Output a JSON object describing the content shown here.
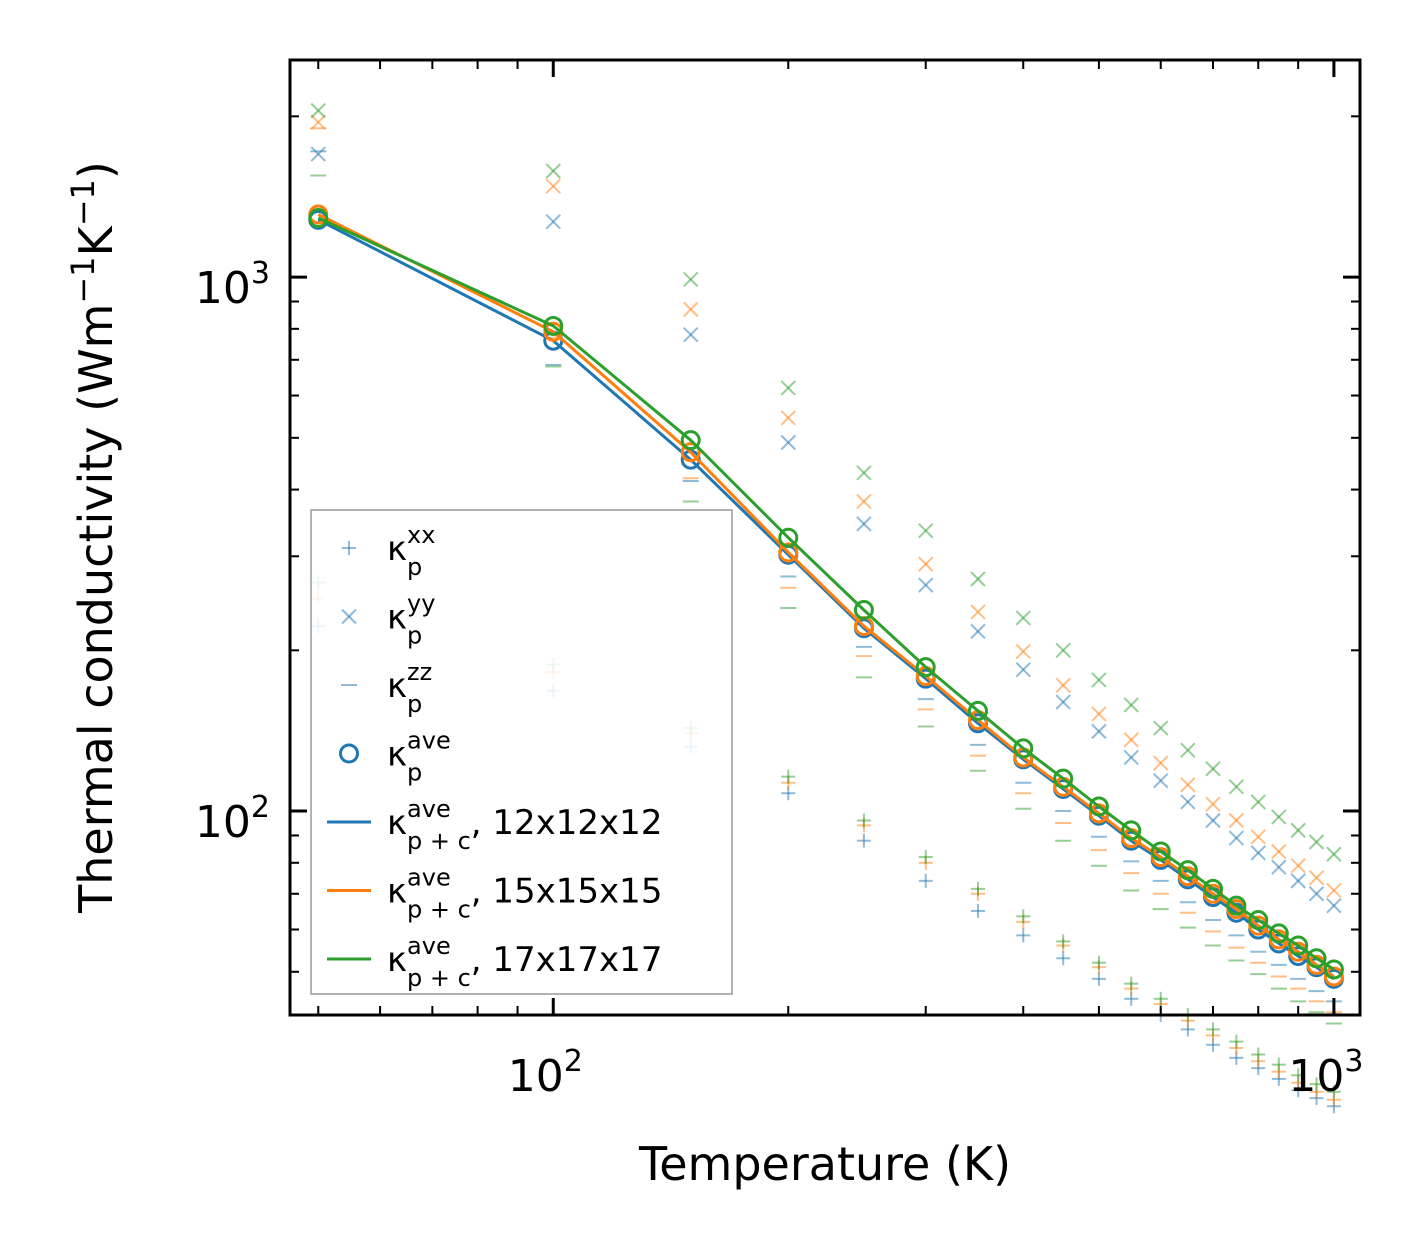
{
  "chart_data": {
    "type": "scatter",
    "xscale": "log",
    "yscale": "log",
    "xlim": [
      46,
      1080
    ],
    "ylim": [
      41.5,
      2550
    ],
    "xlabel": "Temperature (K)",
    "ylabel": {
      "main": "Thermal conductivity (Wm",
      "exp1": "−1",
      "mid": "K",
      "exp2": "−1",
      "close": ")"
    },
    "x_major_ticks": [
      {
        "value": 100,
        "base": "10",
        "exp": "2"
      },
      {
        "value": 1000,
        "base": "10",
        "exp": "3"
      }
    ],
    "y_major_ticks": [
      {
        "value": 100,
        "base": "10",
        "exp": "2"
      },
      {
        "value": 1000,
        "base": "10",
        "exp": "3"
      }
    ],
    "temperatures": [
      50,
      100,
      150,
      200,
      250,
      300,
      350,
      400,
      450,
      500,
      550,
      600,
      650,
      700,
      750,
      800,
      850,
      900,
      950,
      1000
    ],
    "series": [
      {
        "name": "12x12x12",
        "color": "#1f77b4",
        "ave": [
          1280,
          760,
          455,
          302,
          220,
          177,
          146,
          125,
          110,
          98,
          88,
          81,
          74.5,
          69,
          64.5,
          60,
          56.5,
          53.5,
          51,
          48.5
        ],
        "xx": [
          222,
          168,
          132,
          108,
          88,
          74,
          65,
          58.5,
          53,
          48.5,
          44.5,
          41.5,
          39,
          36.5,
          34.5,
          33,
          31.5,
          30,
          29,
          28
        ],
        "yy": [
          1700,
          1270,
          780,
          490,
          345,
          265,
          217,
          184,
          160,
          141,
          126,
          114,
          104,
          96,
          89,
          83.5,
          78.5,
          74,
          70,
          66.5
        ],
        "zz": [
          1720,
          685,
          415,
          275,
          203,
          162,
          133,
          113,
          100,
          89.5,
          80.5,
          74,
          67.5,
          62.5,
          58.5,
          54.5,
          51.5,
          48.5,
          46,
          44
        ]
      },
      {
        "name": "15x15x15",
        "color": "#ff7f0e",
        "ave": [
          1310,
          790,
          470,
          305,
          222,
          179,
          148,
          126,
          111,
          99,
          89,
          82,
          75.5,
          70,
          65.5,
          61,
          57.5,
          54.5,
          51.5,
          49
        ],
        "xx": [
          250,
          182,
          140,
          113,
          94,
          80,
          70,
          62,
          56,
          51,
          46.5,
          43.5,
          40.5,
          38,
          36,
          34,
          32.5,
          31,
          29.8,
          28.8
        ],
        "yy": [
          1950,
          1480,
          870,
          545,
          380,
          290,
          236,
          199,
          172,
          152,
          136,
          123,
          112,
          103,
          96,
          89.5,
          84,
          79,
          75,
          71
        ],
        "zz": [
          1900,
          770,
          420,
          262,
          195,
          155,
          127,
          108,
          95,
          84.5,
          76.5,
          70,
          64.5,
          59.5,
          55.5,
          52,
          49,
          46.5,
          44,
          42
        ]
      },
      {
        "name": "17x17x17",
        "color": "#2ca02c",
        "ave": [
          1290,
          810,
          495,
          325,
          238,
          186,
          154,
          131,
          115,
          102,
          92,
          84,
          77.5,
          71.5,
          66.5,
          62.5,
          59,
          56,
          53,
          50.5
        ],
        "xx": [
          268,
          188,
          143,
          116,
          96,
          82,
          71.5,
          63.5,
          57,
          52,
          47.5,
          44.5,
          41.5,
          39,
          37,
          35,
          33.5,
          32,
          30.8,
          29.8
        ],
        "yy": [
          2050,
          1580,
          990,
          620,
          430,
          335,
          272,
          230,
          200,
          176,
          158,
          143,
          130,
          120,
          111,
          104,
          97.5,
          92,
          87.5,
          83
        ],
        "zz": [
          1550,
          680,
          380,
          240,
          178,
          144,
          119,
          101,
          88,
          79,
          71,
          65.5,
          60.5,
          56,
          52.5,
          49.5,
          46.5,
          44,
          42,
          40
        ]
      }
    ],
    "legend": {
      "placement": "lower-left",
      "entries": [
        {
          "label": "κ",
          "sub": "p",
          "sup": "xx",
          "tail": "",
          "marker": "plus"
        },
        {
          "label": "κ",
          "sub": "p",
          "sup": "yy",
          "tail": "",
          "marker": "cross"
        },
        {
          "label": "κ",
          "sub": "p",
          "sup": "zz",
          "tail": "",
          "marker": "hline"
        },
        {
          "label": "κ",
          "sub": "p",
          "sup": "ave",
          "tail": "",
          "marker": "circle"
        },
        {
          "label": "κ",
          "sub": "p + c",
          "sup": "ave",
          "tail": ", 12x12x12",
          "marker": "line-blue"
        },
        {
          "label": "κ",
          "sub": "p + c",
          "sup": "ave",
          "tail": ", 15x15x15",
          "marker": "line-orange"
        },
        {
          "label": "κ",
          "sub": "p + c",
          "sup": "ave",
          "tail": ", 17x17x17",
          "marker": "line-green"
        }
      ]
    }
  }
}
